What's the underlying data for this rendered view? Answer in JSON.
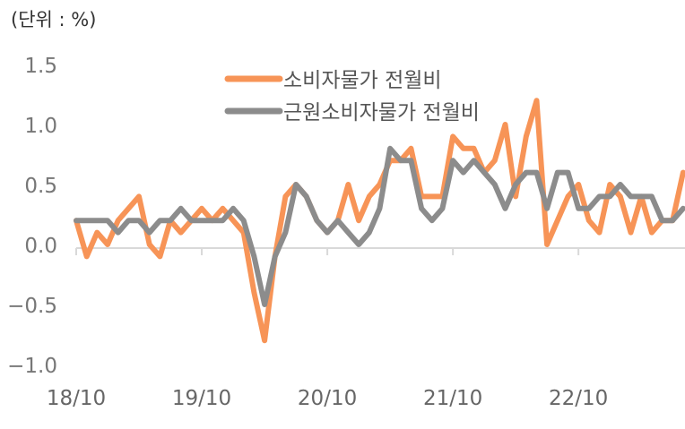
{
  "unit_label": "(단위 : %)",
  "chart_data": {
    "type": "line",
    "title": "",
    "xlabel": "",
    "ylabel": "(단위 : %)",
    "ylim": [
      -1.0,
      1.5
    ],
    "yticks": [
      "1.5",
      "1.0",
      "0.5",
      "0.0",
      "-0.5",
      "-1.0"
    ],
    "xticks": [
      "18/10",
      "19/10",
      "20/10",
      "21/10",
      "22/10"
    ],
    "grid": false,
    "legend_position": "top-center",
    "x_start": "18/10",
    "x_end": "23/07",
    "series": [
      {
        "name": "소비자물가 전월비",
        "color": "#F79457",
        "values": [
          0.2,
          -0.1,
          0.1,
          0.0,
          0.2,
          0.3,
          0.4,
          0.0,
          -0.1,
          0.2,
          0.1,
          0.2,
          0.3,
          0.2,
          0.3,
          0.2,
          0.1,
          -0.4,
          -0.8,
          -0.1,
          0.4,
          0.5,
          0.4,
          0.2,
          0.1,
          0.2,
          0.5,
          0.2,
          0.4,
          0.5,
          0.7,
          0.7,
          0.8,
          0.4,
          0.4,
          0.4,
          0.9,
          0.8,
          0.8,
          0.6,
          0.7,
          1.0,
          0.4,
          0.9,
          1.2,
          0.0,
          0.2,
          0.4,
          0.5,
          0.2,
          0.1,
          0.5,
          0.4,
          0.1,
          0.4,
          0.1,
          0.2,
          0.2,
          0.6
        ]
      },
      {
        "name": "근원소비자물가 전월비",
        "color": "#8C8C8C",
        "values": [
          0.2,
          0.2,
          0.2,
          0.2,
          0.1,
          0.2,
          0.2,
          0.1,
          0.2,
          0.2,
          0.3,
          0.2,
          0.2,
          0.2,
          0.2,
          0.3,
          0.2,
          -0.1,
          -0.5,
          -0.1,
          0.1,
          0.5,
          0.4,
          0.2,
          0.1,
          0.2,
          0.1,
          0.0,
          0.1,
          0.3,
          0.8,
          0.7,
          0.7,
          0.3,
          0.2,
          0.3,
          0.7,
          0.6,
          0.7,
          0.6,
          0.5,
          0.3,
          0.5,
          0.6,
          0.6,
          0.3,
          0.6,
          0.6,
          0.3,
          0.3,
          0.4,
          0.4,
          0.5,
          0.4,
          0.4,
          0.4,
          0.2,
          0.2,
          0.3
        ]
      }
    ]
  }
}
